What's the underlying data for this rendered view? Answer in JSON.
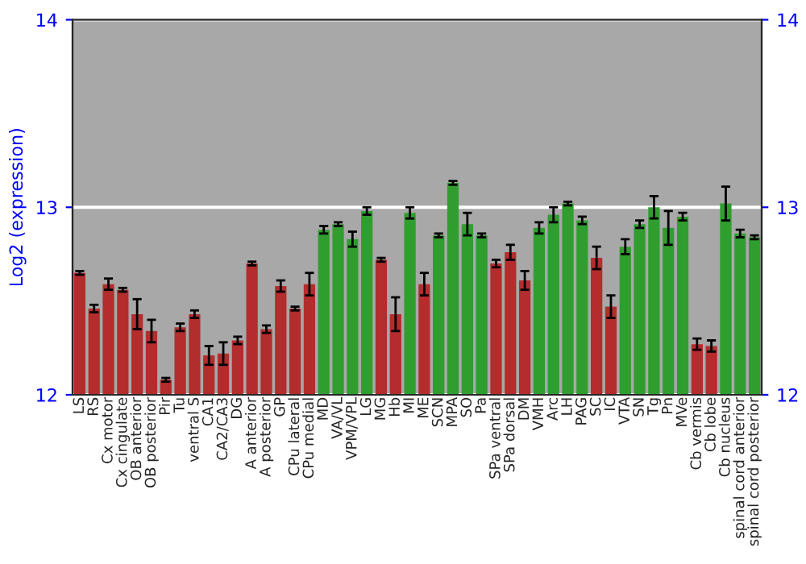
{
  "chart_data": {
    "type": "bar",
    "ylabel": "Log2 (expression)",
    "categories": [
      "LS",
      "RS",
      "Cx motor",
      "Cx cingulate",
      "OB anterior",
      "OB posterior",
      "Pir",
      "Tu",
      "ventral S",
      "CA1",
      "CA2/CA3",
      "DG",
      "A anterior",
      "A posterior",
      "GP",
      "CPu lateral",
      "CPu medial",
      "MD",
      "VA/VL",
      "VPM/VPL",
      "LG",
      "MG",
      "Hb",
      "MI",
      "ME",
      "SCN",
      "MPA",
      "SO",
      "Pa",
      "SPa ventral",
      "SPa dorsal",
      "DM",
      "VMH",
      "Arc",
      "LH",
      "PAG",
      "SC",
      "IC",
      "VTA",
      "SN",
      "Tg",
      "Pn",
      "MVe",
      "Cb vermis",
      "Cb lobe",
      "Cb nucleus",
      "spinal cord anterior",
      "spinal cord posterior"
    ],
    "values": [
      12.65,
      12.46,
      12.59,
      12.56,
      12.43,
      12.34,
      12.08,
      12.36,
      12.43,
      12.21,
      12.22,
      12.29,
      12.7,
      12.35,
      12.58,
      12.46,
      12.59,
      12.88,
      12.91,
      12.83,
      12.98,
      12.72,
      12.43,
      12.97,
      12.59,
      12.85,
      13.13,
      12.91,
      12.85,
      12.7,
      12.76,
      12.61,
      12.89,
      12.96,
      13.02,
      12.93,
      12.73,
      12.47,
      12.79,
      12.91,
      13.0,
      12.89,
      12.95,
      12.27,
      12.26,
      13.02,
      12.86,
      12.84
    ],
    "errors": [
      0.01,
      0.02,
      0.03,
      0.01,
      0.08,
      0.06,
      0.01,
      0.02,
      0.02,
      0.05,
      0.06,
      0.02,
      0.01,
      0.02,
      0.03,
      0.01,
      0.06,
      0.02,
      0.01,
      0.04,
      0.02,
      0.01,
      0.09,
      0.03,
      0.06,
      0.01,
      0.01,
      0.06,
      0.01,
      0.02,
      0.04,
      0.05,
      0.03,
      0.04,
      0.01,
      0.02,
      0.06,
      0.06,
      0.04,
      0.02,
      0.06,
      0.09,
      0.02,
      0.03,
      0.03,
      0.09,
      0.02,
      0.01
    ],
    "colors": [
      "#b32d2d",
      "#b32d2d",
      "#b32d2d",
      "#b32d2d",
      "#b32d2d",
      "#b32d2d",
      "#b32d2d",
      "#b32d2d",
      "#b32d2d",
      "#b32d2d",
      "#b32d2d",
      "#b32d2d",
      "#b32d2d",
      "#b32d2d",
      "#b32d2d",
      "#b32d2d",
      "#b32d2d",
      "#2f9e2f",
      "#2f9e2f",
      "#2f9e2f",
      "#2f9e2f",
      "#b32d2d",
      "#b32d2d",
      "#2f9e2f",
      "#b32d2d",
      "#2f9e2f",
      "#2f9e2f",
      "#2f9e2f",
      "#2f9e2f",
      "#b32d2d",
      "#b32d2d",
      "#b32d2d",
      "#2f9e2f",
      "#2f9e2f",
      "#2f9e2f",
      "#2f9e2f",
      "#b32d2d",
      "#b32d2d",
      "#2f9e2f",
      "#2f9e2f",
      "#2f9e2f",
      "#2f9e2f",
      "#2f9e2f",
      "#b32d2d",
      "#b32d2d",
      "#2f9e2f",
      "#2f9e2f",
      "#2f9e2f"
    ],
    "ylim": [
      12,
      14
    ],
    "yticks": [
      12,
      13,
      14
    ],
    "y2lim": [
      12,
      14
    ],
    "y2ticks": [
      12,
      13,
      14
    ],
    "grid": "y"
  }
}
